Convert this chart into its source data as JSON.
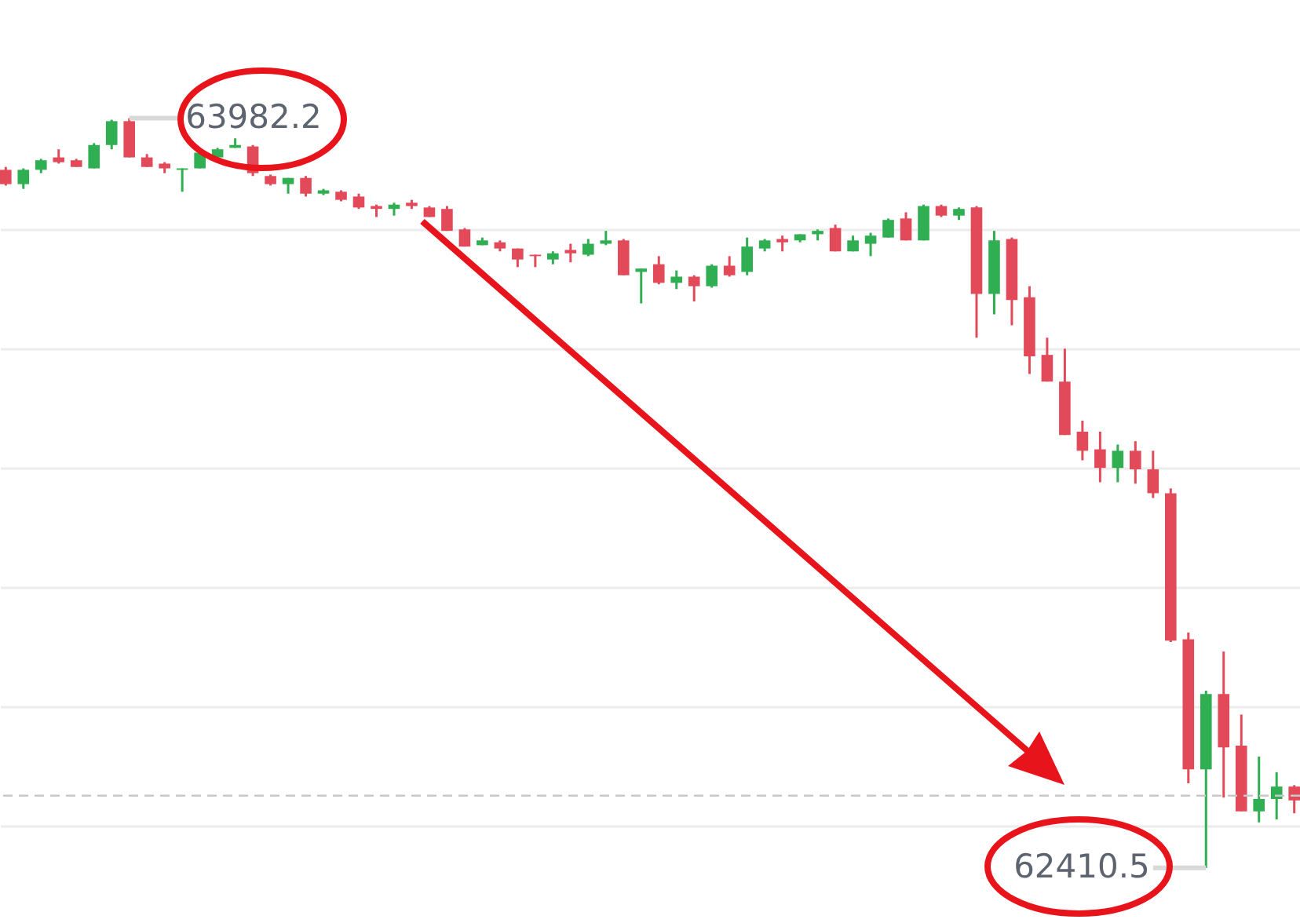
{
  "chart_data": {
    "type": "candlestick",
    "categories": [
      null,
      null,
      null,
      null,
      null,
      null,
      null,
      null,
      null,
      null,
      null,
      null,
      null,
      null,
      null,
      null,
      null,
      null,
      null,
      null,
      null,
      null,
      null,
      null,
      null,
      null,
      null,
      null,
      null,
      null,
      null,
      null,
      null,
      null,
      null,
      null,
      null,
      null,
      null,
      null,
      null,
      null,
      null,
      null,
      null,
      null,
      null,
      null,
      null,
      null,
      null,
      null,
      null,
      null,
      null,
      null,
      null,
      null,
      null,
      null,
      null,
      null,
      null,
      null,
      null,
      null,
      null,
      null,
      null,
      null,
      null,
      null,
      null,
      null
    ],
    "ohlc": [
      [
        63874,
        63880,
        63841,
        63844
      ],
      [
        63844,
        63877,
        63834,
        63874
      ],
      [
        63874,
        63897,
        63867,
        63894
      ],
      [
        63900,
        63917,
        63887,
        63890
      ],
      [
        63894,
        63897,
        63880,
        63880
      ],
      [
        63877,
        63930,
        63877,
        63926
      ],
      [
        63926,
        63979,
        63917,
        63976
      ],
      [
        63976,
        63982.2,
        63900,
        63900
      ],
      [
        63900,
        63907,
        63880,
        63880
      ],
      [
        63887,
        63890,
        63867,
        63877
      ],
      [
        63874,
        63877,
        63828,
        63877
      ],
      [
        63877,
        63913,
        63877,
        63910
      ],
      [
        63900,
        63920,
        63897,
        63917
      ],
      [
        63920,
        63940,
        63920,
        63926
      ],
      [
        63923,
        63926,
        63861,
        63867
      ],
      [
        63861,
        63864,
        63841,
        63844
      ],
      [
        63844,
        63857,
        63824,
        63857
      ],
      [
        63857,
        63861,
        63818,
        63824
      ],
      [
        63824,
        63834,
        63821,
        63831
      ],
      [
        63828,
        63831,
        63808,
        63811
      ],
      [
        63818,
        63824,
        63792,
        63795
      ],
      [
        63798,
        63801,
        63775,
        63792
      ],
      [
        63792,
        63805,
        63778,
        63801
      ],
      [
        63805,
        63811,
        63792,
        63798
      ],
      [
        63795,
        63798,
        63775,
        63775
      ],
      [
        63792,
        63798,
        63746,
        63746
      ],
      [
        63749,
        63752,
        63713,
        63713
      ],
      [
        63716,
        63732,
        63716,
        63726
      ],
      [
        63722,
        63726,
        63703,
        63709
      ],
      [
        63709,
        63709,
        63670,
        63686
      ],
      [
        63696,
        63696,
        63670,
        63693
      ],
      [
        63686,
        63703,
        63676,
        63699
      ],
      [
        63706,
        63719,
        63680,
        63699
      ],
      [
        63696,
        63729,
        63693,
        63719
      ],
      [
        63719,
        63746,
        63716,
        63726
      ],
      [
        63726,
        63729,
        63653,
        63653
      ],
      [
        63660,
        63667,
        63594,
        63667
      ],
      [
        63676,
        63693,
        63634,
        63637
      ],
      [
        63637,
        63663,
        63624,
        63650
      ],
      [
        63650,
        63653,
        63598,
        63630
      ],
      [
        63630,
        63676,
        63627,
        63673
      ],
      [
        63673,
        63693,
        63650,
        63653
      ],
      [
        63660,
        63732,
        63653,
        63713
      ],
      [
        63709,
        63729,
        63703,
        63726
      ],
      [
        63729,
        63736,
        63703,
        63722
      ],
      [
        63726,
        63739,
        63722,
        63739
      ],
      [
        63739,
        63749,
        63726,
        63746
      ],
      [
        63752,
        63759,
        63703,
        63703
      ],
      [
        63703,
        63736,
        63703,
        63726
      ],
      [
        63719,
        63742,
        63693,
        63736
      ],
      [
        63732,
        63772,
        63732,
        63769
      ],
      [
        63772,
        63785,
        63726,
        63726
      ],
      [
        63726,
        63801,
        63726,
        63798
      ],
      [
        63798,
        63801,
        63775,
        63778
      ],
      [
        63778,
        63795,
        63769,
        63792
      ],
      [
        63795,
        63798,
        63522,
        63614
      ],
      [
        63614,
        63746,
        63571,
        63726
      ],
      [
        63729,
        63732,
        63548,
        63601
      ],
      [
        63607,
        63630,
        63446,
        63483
      ],
      [
        63486,
        63522,
        63430,
        63430
      ],
      [
        63430,
        63499,
        63318,
        63318
      ],
      [
        63325,
        63348,
        63265,
        63285
      ],
      [
        63288,
        63325,
        63219,
        63249
      ],
      [
        63249,
        63298,
        63219,
        63285
      ],
      [
        63285,
        63305,
        63216,
        63246
      ],
      [
        63246,
        63285,
        63186,
        63196
      ],
      [
        63196,
        63206,
        62884,
        62887
      ],
      [
        62890,
        62904,
        62588,
        62617
      ],
      [
        62617,
        62782,
        62410.5,
        62775
      ],
      [
        62775,
        62864,
        62558,
        62663
      ],
      [
        62667,
        62732,
        62529,
        62529
      ],
      [
        62529,
        62644,
        62506,
        62555
      ],
      [
        62555,
        62611,
        62512,
        62581
      ],
      [
        62581,
        62584,
        62525,
        62552
      ]
    ],
    "colors": [
      "#e24a5a",
      "#2fae52",
      "#2fae52",
      "#e24a5a",
      "#e24a5a",
      "#2fae52",
      "#2fae52",
      "#e24a5a",
      "#e24a5a",
      "#e24a5a",
      "#2fae52",
      "#2fae52",
      "#2fae52",
      "#2fae52",
      "#e24a5a",
      "#e24a5a",
      "#2fae52",
      "#e24a5a",
      "#2fae52",
      "#e24a5a",
      "#e24a5a",
      "#e24a5a",
      "#2fae52",
      "#e24a5a",
      "#e24a5a",
      "#e24a5a",
      "#e24a5a",
      "#2fae52",
      "#e24a5a",
      "#e24a5a",
      "#e24a5a",
      "#2fae52",
      "#e24a5a",
      "#2fae52",
      "#2fae52",
      "#e24a5a",
      "#2fae52",
      "#e24a5a",
      "#2fae52",
      "#e24a5a",
      "#2fae52",
      "#e24a5a",
      "#2fae52",
      "#2fae52",
      "#e24a5a",
      "#2fae52",
      "#2fae52",
      "#e24a5a",
      "#2fae52",
      "#2fae52",
      "#2fae52",
      "#e24a5a",
      "#2fae52",
      "#e24a5a",
      "#2fae52",
      "#e24a5a",
      "#2fae52",
      "#e24a5a",
      "#e24a5a",
      "#e24a5a",
      "#e24a5a",
      "#e24a5a",
      "#e24a5a",
      "#2fae52",
      "#e24a5a",
      "#e24a5a",
      "#e24a5a",
      "#e24a5a",
      "#2fae52",
      "#e24a5a",
      "#e24a5a",
      "#2fae52",
      "#2fae52",
      "#e24a5a"
    ],
    "ylim": [
      62295,
      64230
    ],
    "yticks": [
      {
        "value": 62500,
        "label": null
      },
      {
        "value": 62750,
        "label": null
      },
      {
        "value": 63000,
        "label": null
      },
      {
        "value": 63250,
        "label": null
      },
      {
        "value": 63500,
        "label": null
      },
      {
        "value": 63750,
        "label": null
      }
    ],
    "grid": "y",
    "ref_lines": [
      {
        "axis": "y",
        "value": 62562,
        "color": "#c8c8c8",
        "line_style": "dashed"
      }
    ],
    "annotations": [
      "63982.2",
      "62410.5"
    ]
  }
}
